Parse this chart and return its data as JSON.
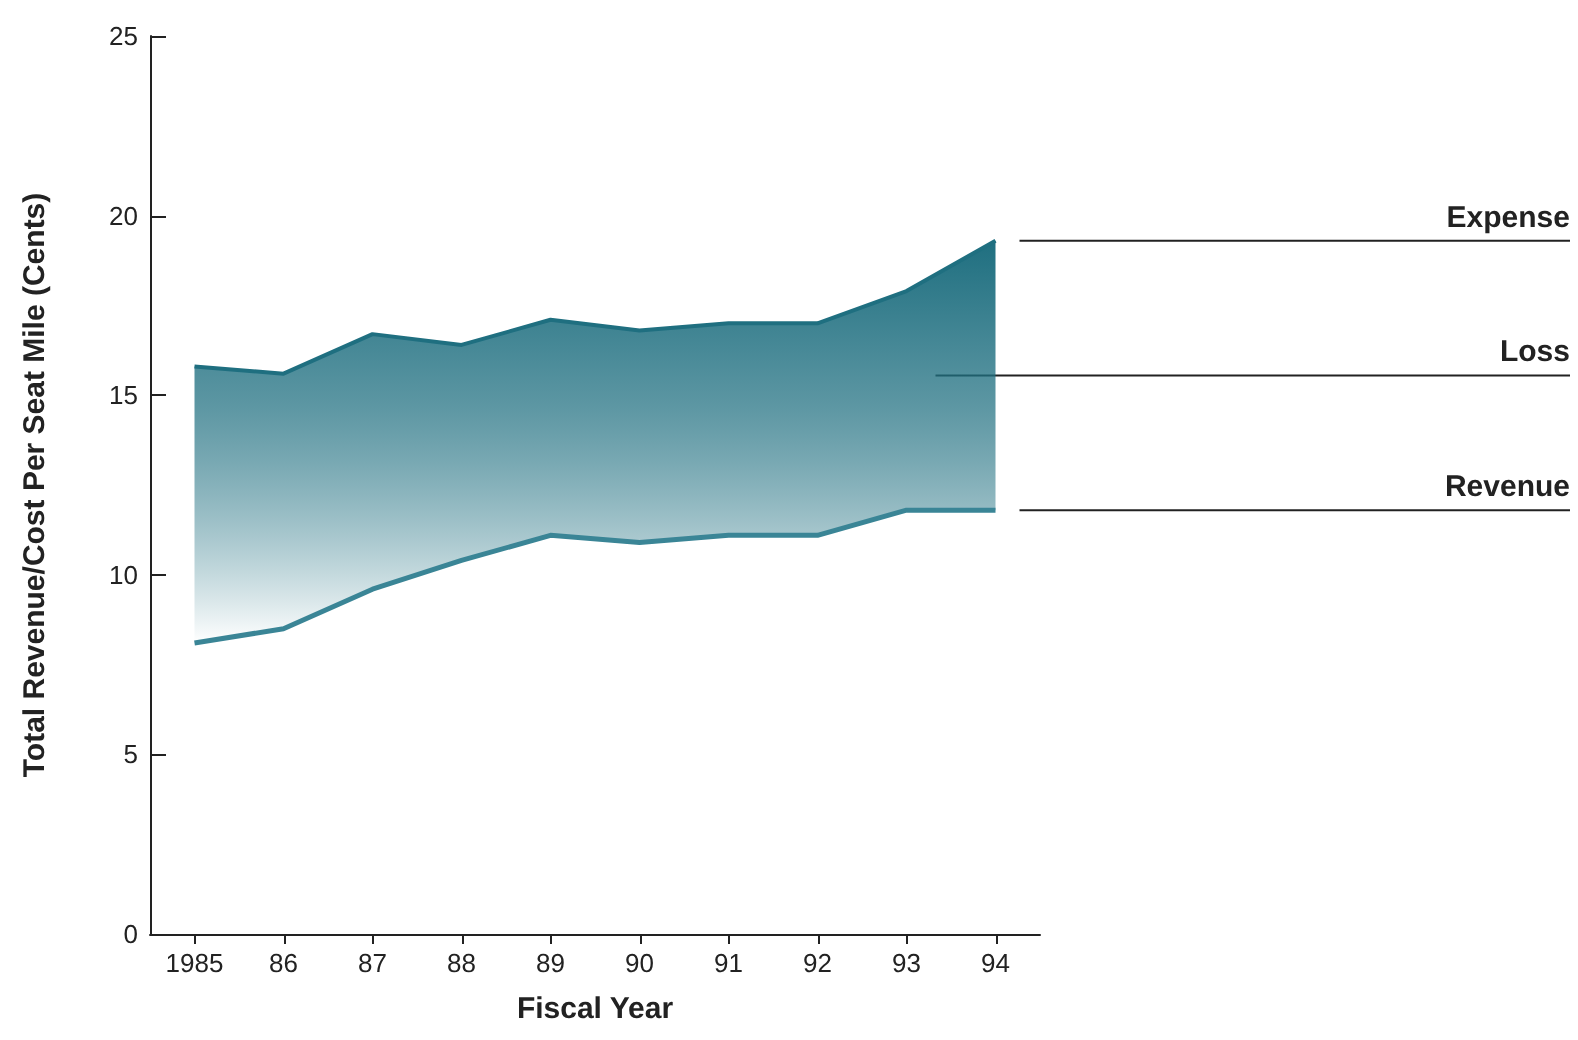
{
  "chart_data": {
    "type": "line",
    "xlabel": "Fiscal Year",
    "ylabel": "Total Revenue/Cost Per Seat Mile (Cents)",
    "categories": [
      "1985",
      "86",
      "87",
      "88",
      "89",
      "90",
      "91",
      "92",
      "93",
      "94"
    ],
    "series": [
      {
        "name": "Expense",
        "type": "area",
        "color": "#1f6f80",
        "values": [
          15.8,
          15.6,
          16.7,
          16.4,
          17.1,
          16.8,
          17.0,
          17.0,
          17.9,
          19.3
        ]
      },
      {
        "name": "Revenue",
        "type": "line",
        "color": "#3a8596",
        "values": [
          8.1,
          8.5,
          9.6,
          10.4,
          11.1,
          10.9,
          11.1,
          11.1,
          11.8,
          11.8
        ]
      }
    ],
    "annotations": [
      "Loss"
    ],
    "ylim": [
      0,
      25
    ],
    "yticks": [
      0,
      5,
      10,
      15,
      20,
      25
    ],
    "grid": false,
    "legend": false,
    "marker": "none",
    "line_style": "solid"
  }
}
